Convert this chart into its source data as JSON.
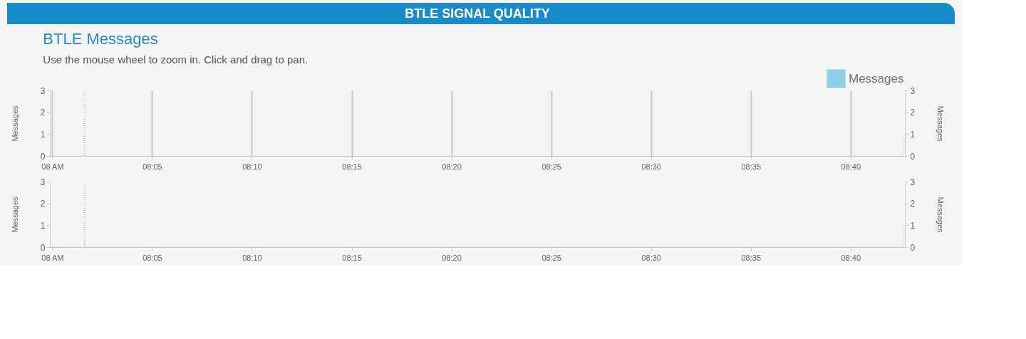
{
  "chart_data": [
    {
      "type": "line",
      "title": "BTLE Messages",
      "subtitle": "Use the mouse wheel to zoom in. Click and drag to pan.",
      "annotations": [
        "BTLE SIGNAL QUALITY"
      ],
      "ylabel": "Messages",
      "y2label": "Messages",
      "x": [
        7.998,
        8.0265,
        8.027,
        8.0275,
        8.711,
        8.7115
      ],
      "series": [
        {
          "name": "Messages",
          "color": "#8ecfe6",
          "values": [
            0,
            0,
            3,
            0,
            0,
            1
          ]
        }
      ],
      "xlim": [
        7.998,
        8.712
      ],
      "xticks": [
        {
          "value": 8,
          "label": "08 AM"
        },
        {
          "value": 8.083333,
          "label": "08:05"
        },
        {
          "value": 8.166667,
          "label": "08:10"
        },
        {
          "value": 8.25,
          "label": "08:15"
        },
        {
          "value": 8.333333,
          "label": "08:20"
        },
        {
          "value": 8.416667,
          "label": "08:25"
        },
        {
          "value": 8.5,
          "label": "08:30"
        },
        {
          "value": 8.583333,
          "label": "08:35"
        },
        {
          "value": 8.666667,
          "label": "08:40"
        }
      ],
      "ylim": [
        0,
        3
      ],
      "yticks": [
        0,
        1,
        2,
        3
      ],
      "y2lim": [
        0,
        3
      ],
      "y2ticks": [
        0,
        1,
        2,
        3
      ],
      "grid": "x",
      "legend": "top right",
      "line_style": "dotted"
    },
    {
      "type": "line",
      "ylabel": "Messages",
      "y2label": "Messages",
      "x": [
        7.998,
        8.0265,
        8.027,
        8.0275,
        8.711,
        8.7115
      ],
      "series": [
        {
          "color": "#8ecfe6",
          "values": [
            0,
            0,
            3,
            0,
            0,
            1
          ]
        }
      ],
      "xlim": [
        7.998,
        8.712
      ],
      "xticks": [
        {
          "value": 8,
          "label": "08 AM"
        },
        {
          "value": 8.083333,
          "label": "08:05"
        },
        {
          "value": 8.166667,
          "label": "08:10"
        },
        {
          "value": 8.25,
          "label": "08:15"
        },
        {
          "value": 8.333333,
          "label": "08:20"
        },
        {
          "value": 8.416667,
          "label": "08:25"
        },
        {
          "value": 8.5,
          "label": "08:30"
        },
        {
          "value": 8.583333,
          "label": "08:35"
        },
        {
          "value": 8.666667,
          "label": "08:40"
        }
      ],
      "ylim": [
        0,
        3
      ],
      "yticks": [
        0,
        1,
        2,
        3
      ],
      "y2lim": [
        0,
        3
      ],
      "y2ticks": [
        0,
        1,
        2,
        3
      ],
      "grid": false,
      "line_style": "dotted"
    }
  ]
}
